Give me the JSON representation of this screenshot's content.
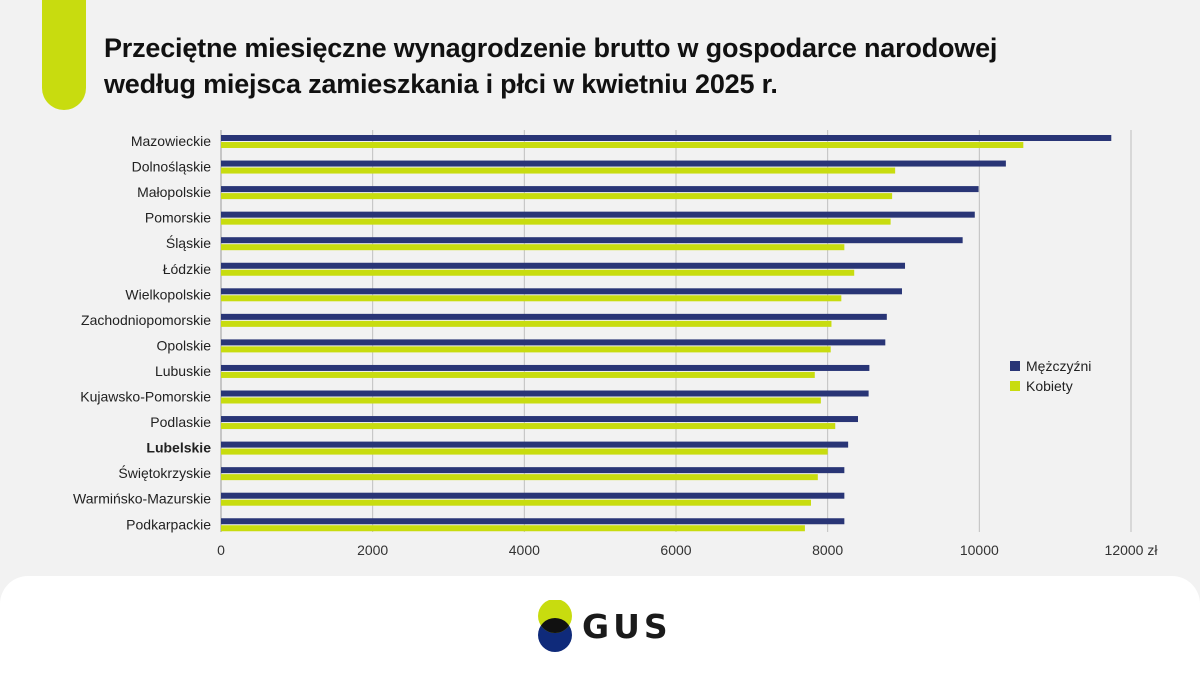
{
  "title_line1": "Przeciętne miesięczne wynagrodzenie brutto w gospodarce narodowej",
  "title_line2": "według miejsca zamieszkania i płci w kwietniu 2025 r.",
  "logo_text": "GUS",
  "colors": {
    "men": "#293576",
    "women": "#c8dc0f",
    "accent": "#c8dc0f",
    "grid": "#bfbfbf"
  },
  "chart_data": {
    "type": "bar",
    "orientation": "horizontal",
    "categories": [
      "Mazowieckie",
      "Dolnośląskie",
      "Małopolskie",
      "Pomorskie",
      "Śląskie",
      "Łódzkie",
      "Wielkopolskie",
      "Zachodniopomorskie",
      "Opolskie",
      "Lubuskie",
      "Kujawsko-Pomorskie",
      "Podlaskie",
      "Lubelskie",
      "Świętokrzyskie",
      "Warmińsko-Mazurskie",
      "Podkarpackie"
    ],
    "highlighted_category": "Lubelskie",
    "series": [
      {
        "name": "Mężczyźni",
        "values": [
          11740,
          10350,
          9990,
          9940,
          9780,
          9020,
          8980,
          8780,
          8760,
          8550,
          8540,
          8400,
          8270,
          8220,
          8220,
          8220
        ]
      },
      {
        "name": "Kobiety",
        "values": [
          10580,
          8890,
          8850,
          8830,
          8220,
          8350,
          8180,
          8050,
          8040,
          7830,
          7910,
          8100,
          8000,
          7870,
          7780,
          7700
        ]
      }
    ],
    "x_ticks": [
      "0",
      "2000",
      "4000",
      "6000",
      "8000",
      "10000",
      "12000 zł"
    ],
    "xlim": [
      0,
      12000
    ],
    "unit": "zł",
    "grid": true,
    "legend_position": "right"
  }
}
